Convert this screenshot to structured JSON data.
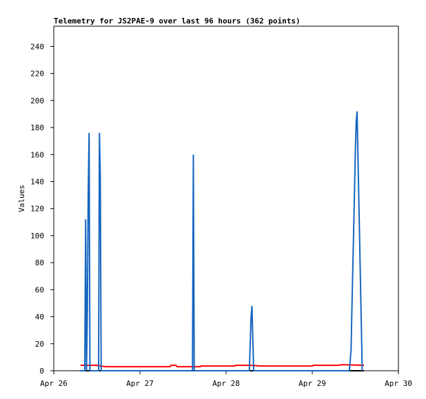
{
  "chart_data": {
    "type": "line",
    "title": "Telemetry for JS2PAE-9 over last 96 hours (362 points)",
    "y_label": "Values",
    "xlim": [
      0,
      4
    ],
    "ylim": [
      0,
      255
    ],
    "xticks": [
      {
        "value": 0,
        "label": "Apr 26"
      },
      {
        "value": 1,
        "label": "Apr 27"
      },
      {
        "value": 2,
        "label": "Apr 28"
      },
      {
        "value": 3,
        "label": "Apr 29"
      },
      {
        "value": 4,
        "label": "Apr 30"
      }
    ],
    "yticks": [
      0,
      20,
      40,
      60,
      80,
      100,
      120,
      140,
      160,
      180,
      200,
      220,
      240
    ],
    "grid": false,
    "series": [
      {
        "color": "#000000",
        "x": [
          0.31,
          3.6
        ],
        "values": [
          0,
          0
        ]
      },
      {
        "color": "#ff0000",
        "x": [
          0.31,
          0.5,
          0.6,
          1.35,
          1.36,
          1.42,
          1.43,
          1.7,
          1.71,
          2.1,
          2.11,
          2.3,
          2.4,
          2.6,
          2.61,
          3.0,
          3.01,
          3.3,
          3.35,
          3.6
        ],
        "values": [
          4,
          4,
          3,
          3,
          4,
          4,
          3,
          3,
          3.5,
          3.5,
          4,
          4,
          3.5,
          3.5,
          3.5,
          3.5,
          4,
          4,
          4.5,
          4
        ]
      },
      {
        "color": "#1565c0",
        "x": [
          0.3,
          0.36,
          0.37,
          0.38,
          0.39,
          0.4,
          0.41,
          0.42,
          0.43,
          0.52,
          0.53,
          0.54,
          0.55,
          1.61,
          1.62,
          1.63,
          2.27,
          2.29,
          2.3,
          2.31,
          2.32,
          3.43,
          3.45,
          3.46,
          3.47,
          3.48,
          3.49,
          3.5,
          3.51,
          3.52,
          3.58
        ],
        "values": [
          0,
          0,
          112,
          0,
          45,
          132,
          176,
          0,
          0,
          0,
          176,
          144,
          0,
          0,
          160,
          0,
          0,
          40,
          48,
          24,
          0,
          0,
          15,
          45,
          74,
          103,
          132,
          162,
          184,
          192,
          0
        ]
      }
    ]
  }
}
